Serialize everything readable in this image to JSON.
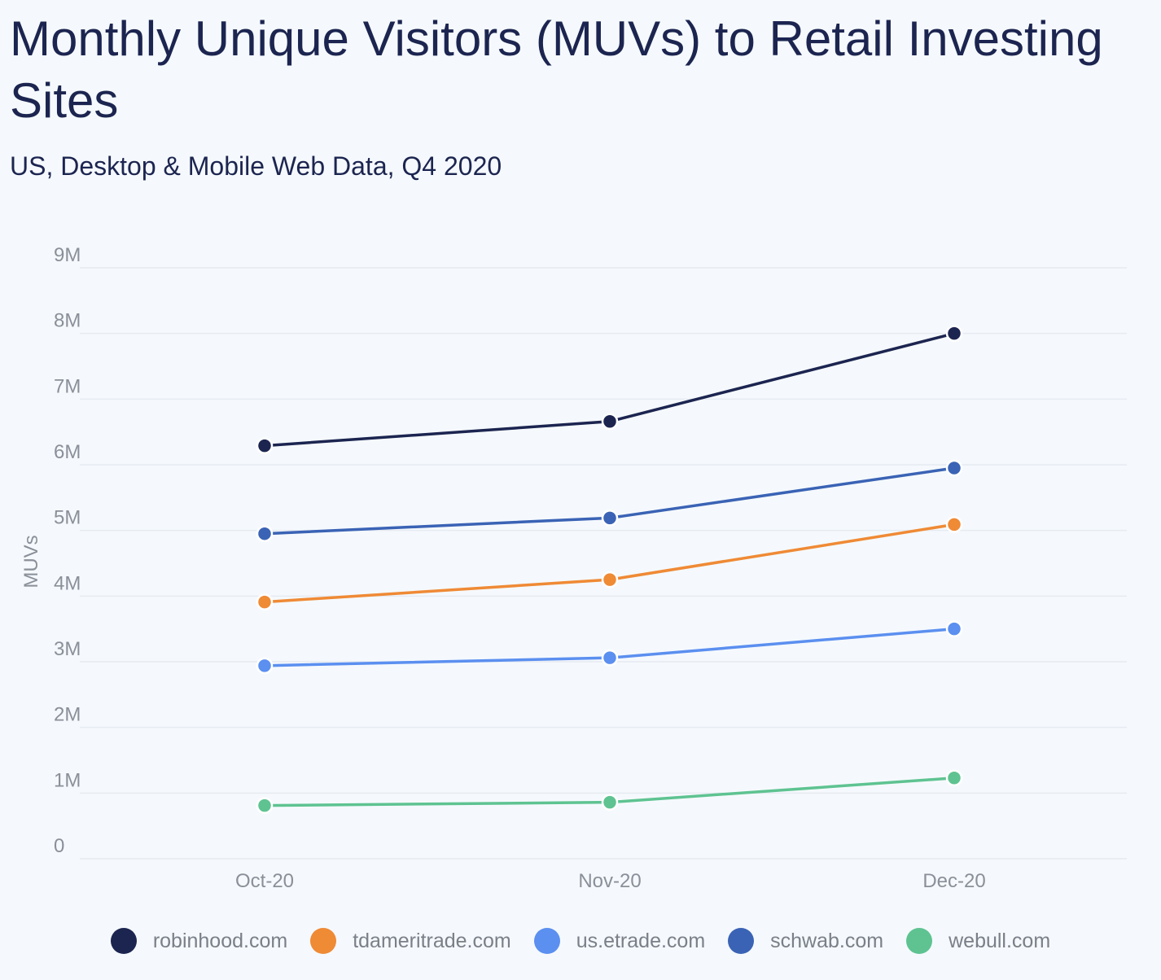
{
  "chart_data": {
    "type": "line",
    "title": "Monthly Unique Visitors (MUVs) to Retail Investing Sites",
    "subtitle": "US, Desktop & Mobile Web Data, Q4 2020",
    "ylabel": "MUVs",
    "xlabel": "",
    "categories": [
      "Oct-20",
      "Nov-20",
      "Dec-20"
    ],
    "ylim": [
      0,
      9000000
    ],
    "y_ticks": [
      {
        "value": 0,
        "label": "0"
      },
      {
        "value": 1000000,
        "label": "1M"
      },
      {
        "value": 2000000,
        "label": "2M"
      },
      {
        "value": 3000000,
        "label": "3M"
      },
      {
        "value": 4000000,
        "label": "4M"
      },
      {
        "value": 5000000,
        "label": "5M"
      },
      {
        "value": 6000000,
        "label": "6M"
      },
      {
        "value": 7000000,
        "label": "7M"
      },
      {
        "value": 8000000,
        "label": "8M"
      },
      {
        "value": 9000000,
        "label": "9M"
      }
    ],
    "grid": true,
    "legend_position": "bottom",
    "series": [
      {
        "name": "robinhood.com",
        "color": "#1c2550",
        "values": [
          6290000,
          6660000,
          8000000
        ]
      },
      {
        "name": "tdameritrade.com",
        "color": "#ef8a35",
        "values": [
          3910000,
          4250000,
          5090000
        ]
      },
      {
        "name": "us.etrade.com",
        "color": "#5b8ff0",
        "values": [
          2940000,
          3060000,
          3500000
        ]
      },
      {
        "name": "schwab.com",
        "color": "#3a63b5",
        "values": [
          4950000,
          5190000,
          5950000
        ]
      },
      {
        "name": "webull.com",
        "color": "#5ec391",
        "values": [
          810000,
          860000,
          1230000
        ]
      }
    ]
  }
}
